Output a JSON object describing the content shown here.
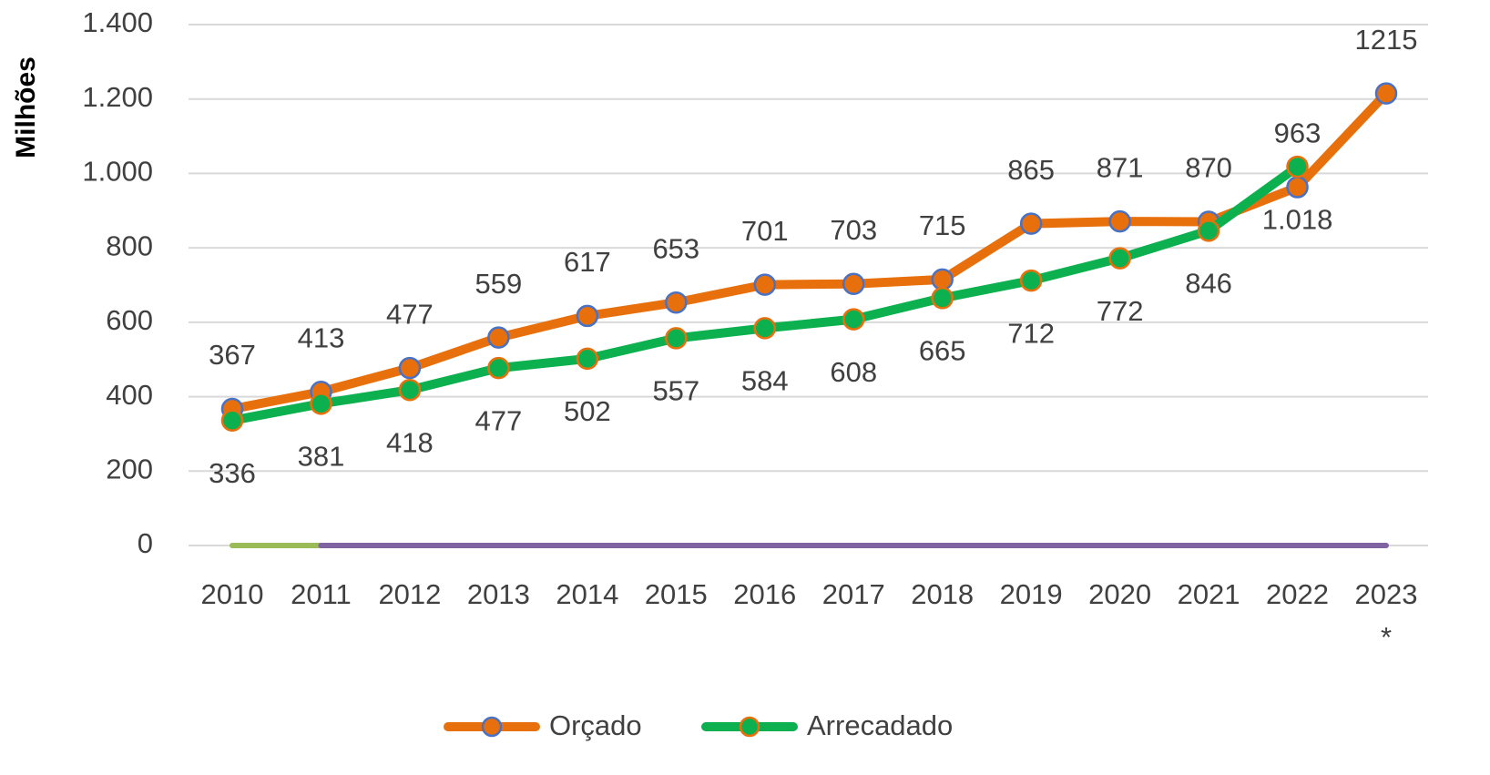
{
  "chart_data": {
    "type": "line",
    "y_label": "Milhões",
    "categories": [
      "2010",
      "2011",
      "2012",
      "2013",
      "2014",
      "2015",
      "2016",
      "2017",
      "2018",
      "2019",
      "2020",
      "2021",
      "2022",
      "2023"
    ],
    "category_note": "*",
    "series": [
      {
        "name": "Orçado",
        "color": "#e8700c",
        "marker_edge": "#4a72c4",
        "values": [
          367,
          413,
          477,
          559,
          617,
          653,
          701,
          703,
          715,
          865,
          871,
          870,
          963,
          1215
        ]
      },
      {
        "name": "Arrecadado",
        "color": "#0cb04f",
        "marker_edge": "#e8700c",
        "values": [
          336,
          381,
          418,
          477,
          502,
          557,
          584,
          608,
          665,
          712,
          772,
          846,
          1018,
          null
        ],
        "value_labels": [
          "336",
          "381",
          "418",
          "477",
          "502",
          "557",
          "584",
          "608",
          "665",
          "712",
          "772",
          "846",
          "1.018",
          null
        ]
      },
      {
        "color": "#9bbb59",
        "values": [
          0,
          0,
          null,
          null,
          null,
          null,
          null,
          null,
          null,
          null,
          null,
          null,
          null,
          null
        ]
      },
      {
        "color": "#8064a2",
        "values": [
          null,
          0,
          0,
          0,
          0,
          0,
          0,
          0,
          0,
          0,
          0,
          0,
          0,
          0
        ]
      }
    ],
    "ylim": [
      0,
      1400
    ],
    "yticks": [
      0,
      200,
      400,
      600,
      800,
      {
        "value": 1000,
        "label": "1.000"
      },
      {
        "value": 1200,
        "label": "1.200"
      },
      {
        "value": 1400,
        "label": "1.400"
      }
    ],
    "grid": true
  }
}
